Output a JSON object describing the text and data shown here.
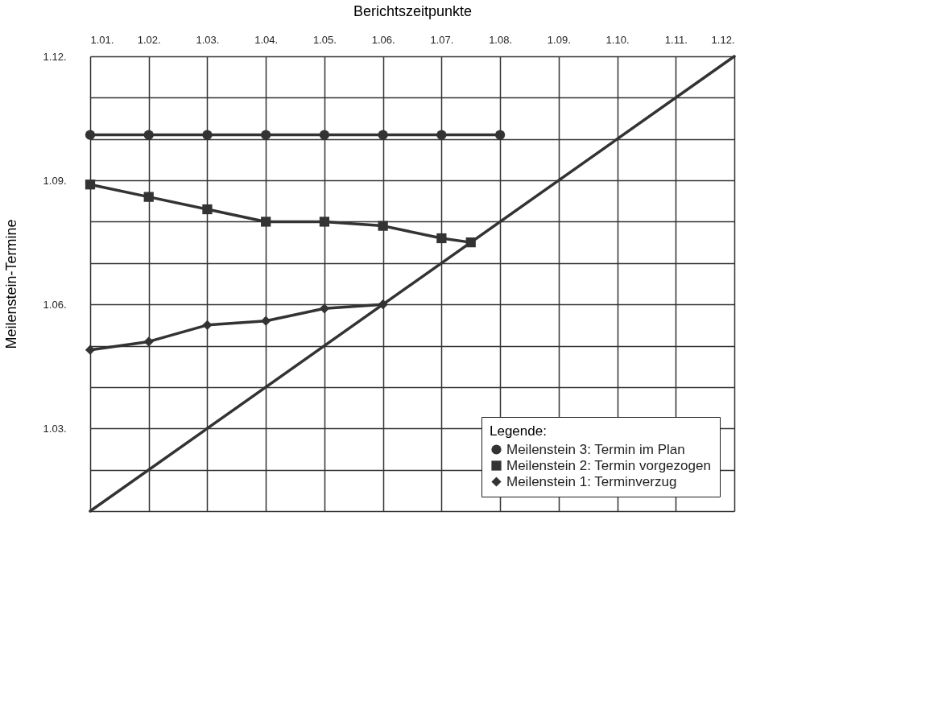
{
  "chart_data": {
    "type": "line",
    "xlabel": "Berichtszeitpunkte",
    "ylabel": "Meilenstein-Termine",
    "legend_title": "Legende:",
    "xlim": [
      1.01,
      1.12
    ],
    "ylim": [
      1.01,
      1.12
    ],
    "xticks": [
      {
        "value": 1.01,
        "label": "1.01."
      },
      {
        "value": 1.02,
        "label": "1.02."
      },
      {
        "value": 1.03,
        "label": "1.03."
      },
      {
        "value": 1.04,
        "label": "1.04."
      },
      {
        "value": 1.05,
        "label": "1.05."
      },
      {
        "value": 1.06,
        "label": "1.06."
      },
      {
        "value": 1.07,
        "label": "1.07."
      },
      {
        "value": 1.08,
        "label": "1.08."
      },
      {
        "value": 1.09,
        "label": "1.09."
      },
      {
        "value": 1.1,
        "label": "1.10."
      },
      {
        "value": 1.11,
        "label": "1.11."
      },
      {
        "value": 1.12,
        "label": "1.12."
      }
    ],
    "yticks": [
      {
        "value": 1.01,
        "label": null
      },
      {
        "value": 1.02,
        "label": null
      },
      {
        "value": 1.03,
        "label": "1.03."
      },
      {
        "value": 1.04,
        "label": null
      },
      {
        "value": 1.05,
        "label": null
      },
      {
        "value": 1.06,
        "label": "1.06."
      },
      {
        "value": 1.07,
        "label": null
      },
      {
        "value": 1.08,
        "label": null
      },
      {
        "value": 1.09,
        "label": "1.09."
      },
      {
        "value": 1.1,
        "label": null
      },
      {
        "value": 1.11,
        "label": null
      },
      {
        "value": 1.12,
        "label": "1.12."
      }
    ],
    "grid": true,
    "legend": "bottom right",
    "line_style": "solid",
    "series": [
      {
        "name": "Meilenstein 3: Termin im Plan",
        "color": "#333333",
        "marker": "circle",
        "x": [
          1.01,
          1.02,
          1.03,
          1.04,
          1.05,
          1.06,
          1.07,
          1.08
        ],
        "values": [
          1.101,
          1.101,
          1.101,
          1.101,
          1.101,
          1.101,
          1.101,
          1.101
        ]
      },
      {
        "name": "Meilenstein 2: Termin vorgezogen",
        "color": "#333333",
        "marker": "square",
        "x": [
          1.01,
          1.02,
          1.03,
          1.04,
          1.05,
          1.06,
          1.07,
          1.075
        ],
        "values": [
          1.089,
          1.086,
          1.083,
          1.08,
          1.08,
          1.079,
          1.076,
          1.075
        ]
      },
      {
        "name": "Meilenstein 1: Terminverzug",
        "color": "#333333",
        "marker": "diamond",
        "x": [
          1.01,
          1.02,
          1.03,
          1.04,
          1.05,
          1.06
        ],
        "values": [
          1.049,
          1.051,
          1.055,
          1.056,
          1.059,
          1.06
        ]
      },
      {
        "type": "line",
        "color": "#333333",
        "marker": "none",
        "x": [
          1.01,
          1.12
        ],
        "values": [
          1.01,
          1.12
        ]
      }
    ]
  }
}
